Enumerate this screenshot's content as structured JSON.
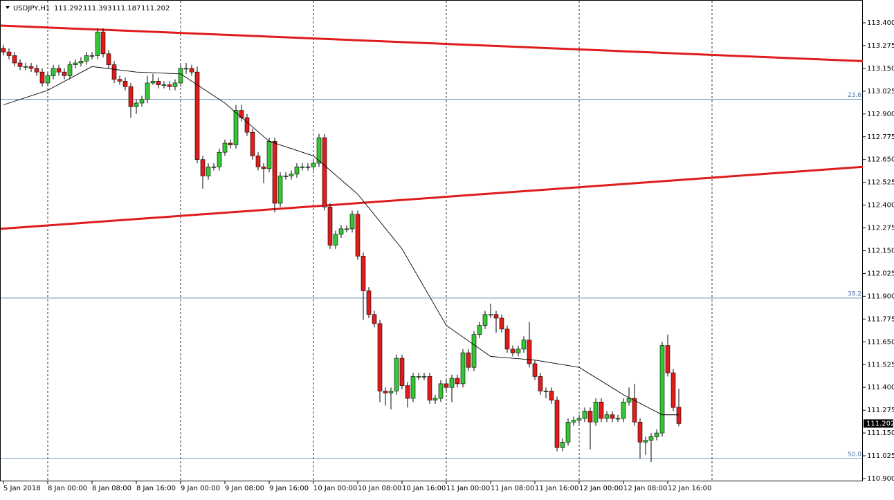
{
  "chart_data": {
    "type": "candlestick",
    "symbol": "USDJPY,H1",
    "header_ohlc": [
      111.292,
      111.393,
      111.187,
      111.202
    ],
    "bull_color": "#34c634",
    "bear_color": "#e01b1b",
    "ylim": [
      110.9,
      113.4
    ],
    "yticks": [
      {
        "value": 113.4,
        "label": "113.400"
      },
      {
        "value": 113.275,
        "label": "113.275"
      },
      {
        "value": 113.15,
        "label": "113.150"
      },
      {
        "value": 113.025,
        "label": "113.025"
      },
      {
        "value": 112.9,
        "label": "112.900"
      },
      {
        "value": 112.775,
        "label": "112.775"
      },
      {
        "value": 112.65,
        "label": "112.650"
      },
      {
        "value": 112.525,
        "label": "112.525"
      },
      {
        "value": 112.4,
        "label": "112.400"
      },
      {
        "value": 112.275,
        "label": "112.275"
      },
      {
        "value": 112.15,
        "label": "112.150"
      },
      {
        "value": 112.025,
        "label": "112.025"
      },
      {
        "value": 111.9,
        "label": "111.900"
      },
      {
        "value": 111.775,
        "label": "111.775"
      },
      {
        "value": 111.65,
        "label": "111.650"
      },
      {
        "value": 111.525,
        "label": "111.525"
      },
      {
        "value": 111.4,
        "label": "111.400"
      },
      {
        "value": 111.275,
        "label": "111.275"
      },
      {
        "value": 111.15,
        "label": "111.150"
      },
      {
        "value": 111.025,
        "label": "111.025"
      },
      {
        "value": 110.9,
        "label": "110.900"
      }
    ],
    "xticks": [
      {
        "value": 0,
        "label": "5 Jan 2018"
      },
      {
        "value": 8,
        "label": "8 Jan 00:00"
      },
      {
        "value": 16,
        "label": "8 Jan 08:00"
      },
      {
        "value": 24,
        "label": "8 Jan 16:00"
      },
      {
        "value": 32,
        "label": "9 Jan 00:00"
      },
      {
        "value": 40,
        "label": "9 Jan 08:00"
      },
      {
        "value": 48,
        "label": "9 Jan 16:00"
      },
      {
        "value": 56,
        "label": "10 Jan 00:00"
      },
      {
        "value": 64,
        "label": "10 Jan 08:00"
      },
      {
        "value": 72,
        "label": "10 Jan 16:00"
      },
      {
        "value": 80,
        "label": "11 Jan 00:00"
      },
      {
        "value": 88,
        "label": "11 Jan 08:00"
      },
      {
        "value": 96,
        "label": "11 Jan 16:00"
      },
      {
        "value": 104,
        "label": "12 Jan 00:00"
      },
      {
        "value": 112,
        "label": "12 Jan 08:00"
      },
      {
        "value": 120,
        "label": "12 Jan 16:00"
      }
    ],
    "day_separators": [
      8,
      32,
      56,
      80,
      104,
      128
    ],
    "current_price": {
      "value": 111.202,
      "label": "111.202"
    },
    "fib_levels": [
      {
        "label": "23.6",
        "price": 112.98
      },
      {
        "label": "38.2",
        "price": 111.89
      },
      {
        "label": "50.0",
        "price": 111.01
      }
    ],
    "fib_color": "#4a74a8",
    "trendlines": [
      {
        "start": 113.385,
        "end": 113.19
      },
      {
        "start": 112.27,
        "end": 112.61
      }
    ],
    "trendline_color": "#e01b1b",
    "ma": {
      "x": [
        0,
        8,
        16,
        24,
        32,
        40,
        48,
        56,
        64,
        72,
        80,
        88,
        96,
        104,
        112,
        119,
        122
      ],
      "values": [
        112.95,
        113.03,
        113.16,
        113.13,
        113.12,
        112.96,
        112.75,
        112.67,
        112.46,
        112.16,
        111.74,
        111.57,
        111.55,
        111.51,
        111.36,
        111.25,
        111.25
      ]
    },
    "candles": [
      [
        113.26,
        113.28,
        113.22,
        113.24
      ],
      [
        113.24,
        113.26,
        113.2,
        113.22
      ],
      [
        113.22,
        113.24,
        113.16,
        113.18
      ],
      [
        113.18,
        113.2,
        113.14,
        113.16
      ],
      [
        113.16,
        113.18,
        113.14,
        113.16
      ],
      [
        113.16,
        113.18,
        113.13,
        113.15
      ],
      [
        113.15,
        113.17,
        113.11,
        113.13
      ],
      [
        113.13,
        113.15,
        113.05,
        113.07
      ],
      [
        113.07,
        113.13,
        113.05,
        113.11
      ],
      [
        113.11,
        113.17,
        113.09,
        113.15
      ],
      [
        113.15,
        113.17,
        113.11,
        113.13
      ],
      [
        113.13,
        113.15,
        113.09,
        113.11
      ],
      [
        113.11,
        113.19,
        113.09,
        113.17
      ],
      [
        113.17,
        113.2,
        113.15,
        113.18
      ],
      [
        113.18,
        113.21,
        113.16,
        113.19
      ],
      [
        113.19,
        113.24,
        113.17,
        113.22
      ],
      [
        113.22,
        113.24,
        113.2,
        113.22
      ],
      [
        113.22,
        113.37,
        113.2,
        113.35
      ],
      [
        113.35,
        113.37,
        113.21,
        113.23
      ],
      [
        113.23,
        113.25,
        113.15,
        113.17
      ],
      [
        113.17,
        113.19,
        113.07,
        113.09
      ],
      [
        113.09,
        113.11,
        113.06,
        113.08
      ],
      [
        113.08,
        113.1,
        113.03,
        113.05
      ],
      [
        113.05,
        113.07,
        112.88,
        112.94
      ],
      [
        112.94,
        112.98,
        112.9,
        112.96
      ],
      [
        112.96,
        113,
        112.94,
        112.98
      ],
      [
        112.98,
        113.11,
        112.96,
        113.07
      ],
      [
        113.07,
        113.12,
        113.06,
        113.08
      ],
      [
        113.08,
        113.1,
        113.04,
        113.06
      ],
      [
        113.06,
        113.08,
        113.04,
        113.06
      ],
      [
        113.06,
        113.08,
        113.03,
        113.05
      ],
      [
        113.05,
        113.09,
        113.03,
        113.07
      ],
      [
        113.07,
        113.17,
        113.05,
        113.15
      ],
      [
        113.15,
        113.18,
        113.12,
        113.15
      ],
      [
        113.15,
        113.17,
        113.11,
        113.13
      ],
      [
        113.13,
        113.16,
        112.63,
        112.65
      ],
      [
        112.65,
        112.67,
        112.49,
        112.56
      ],
      [
        112.56,
        112.63,
        112.54,
        112.61
      ],
      [
        112.61,
        112.63,
        112.59,
        112.61
      ],
      [
        112.61,
        112.71,
        112.59,
        112.69
      ],
      [
        112.69,
        112.76,
        112.67,
        112.74
      ],
      [
        112.74,
        112.76,
        112.71,
        112.73
      ],
      [
        112.73,
        112.95,
        112.71,
        112.92
      ],
      [
        112.92,
        112.95,
        112.86,
        112.88
      ],
      [
        112.88,
        112.9,
        112.78,
        112.8
      ],
      [
        112.8,
        112.82,
        112.65,
        112.67
      ],
      [
        112.67,
        112.69,
        112.59,
        112.61
      ],
      [
        112.61,
        112.63,
        112.52,
        112.6
      ],
      [
        112.6,
        112.77,
        112.58,
        112.75
      ],
      [
        112.75,
        112.77,
        112.36,
        112.41
      ],
      [
        112.41,
        112.58,
        112.39,
        112.56
      ],
      [
        112.56,
        112.58,
        112.54,
        112.56
      ],
      [
        112.56,
        112.59,
        112.54,
        112.57
      ],
      [
        112.57,
        112.63,
        112.55,
        112.61
      ],
      [
        112.61,
        112.63,
        112.59,
        112.61
      ],
      [
        112.61,
        112.63,
        112.59,
        112.61
      ],
      [
        112.61,
        112.65,
        112.59,
        112.63
      ],
      [
        112.63,
        112.79,
        112.61,
        112.77
      ],
      [
        112.77,
        112.79,
        112.37,
        112.39
      ],
      [
        112.39,
        112.41,
        112.16,
        112.18
      ],
      [
        112.18,
        112.26,
        112.16,
        112.24
      ],
      [
        112.24,
        112.29,
        112.22,
        112.27
      ],
      [
        112.27,
        112.29,
        112.25,
        112.27
      ],
      [
        112.27,
        112.37,
        112.25,
        112.35
      ],
      [
        112.35,
        112.37,
        112.1,
        112.12
      ],
      [
        112.12,
        112.14,
        111.77,
        111.93
      ],
      [
        111.93,
        111.95,
        111.78,
        111.8
      ],
      [
        111.8,
        111.82,
        111.73,
        111.75
      ],
      [
        111.75,
        111.77,
        111.32,
        111.38
      ],
      [
        111.38,
        111.4,
        111.3,
        111.37
      ],
      [
        111.37,
        111.4,
        111.28,
        111.38
      ],
      [
        111.38,
        111.58,
        111.36,
        111.56
      ],
      [
        111.56,
        111.58,
        111.39,
        111.41
      ],
      [
        111.41,
        111.43,
        111.29,
        111.34
      ],
      [
        111.34,
        111.48,
        111.32,
        111.46
      ],
      [
        111.46,
        111.48,
        111.44,
        111.46
      ],
      [
        111.46,
        111.48,
        111.44,
        111.46
      ],
      [
        111.46,
        111.48,
        111.31,
        111.33
      ],
      [
        111.33,
        111.36,
        111.31,
        111.34
      ],
      [
        111.34,
        111.44,
        111.32,
        111.42
      ],
      [
        111.42,
        111.44,
        111.38,
        111.4
      ],
      [
        111.4,
        111.47,
        111.32,
        111.45
      ],
      [
        111.45,
        111.47,
        111.4,
        111.42
      ],
      [
        111.42,
        111.61,
        111.4,
        111.59
      ],
      [
        111.59,
        111.61,
        111.49,
        111.51
      ],
      [
        111.51,
        111.71,
        111.49,
        111.69
      ],
      [
        111.69,
        111.76,
        111.67,
        111.74
      ],
      [
        111.74,
        111.82,
        111.72,
        111.8
      ],
      [
        111.8,
        111.86,
        111.78,
        111.8
      ],
      [
        111.8,
        111.82,
        111.7,
        111.78
      ],
      [
        111.78,
        111.8,
        111.7,
        111.72
      ],
      [
        111.72,
        111.74,
        111.59,
        111.61
      ],
      [
        111.61,
        111.63,
        111.57,
        111.59
      ],
      [
        111.59,
        111.63,
        111.57,
        111.61
      ],
      [
        111.61,
        111.68,
        111.59,
        111.66
      ],
      [
        111.66,
        111.76,
        111.51,
        111.53
      ],
      [
        111.53,
        111.55,
        111.44,
        111.46
      ],
      [
        111.46,
        111.48,
        111.36,
        111.38
      ],
      [
        111.38,
        111.4,
        111.34,
        111.38
      ],
      [
        111.38,
        111.4,
        111.31,
        111.33
      ],
      [
        111.33,
        111.35,
        111.05,
        111.07
      ],
      [
        111.07,
        111.12,
        111.05,
        111.1
      ],
      [
        111.1,
        111.23,
        111.08,
        111.21
      ],
      [
        111.21,
        111.24,
        111.19,
        111.22
      ],
      [
        111.22,
        111.25,
        111.2,
        111.23
      ],
      [
        111.23,
        111.29,
        111.21,
        111.27
      ],
      [
        111.27,
        111.29,
        111.06,
        111.21
      ],
      [
        111.21,
        111.34,
        111.19,
        111.32
      ],
      [
        111.32,
        111.34,
        111.21,
        111.23
      ],
      [
        111.23,
        111.27,
        111.21,
        111.25
      ],
      [
        111.25,
        111.27,
        111.21,
        111.23
      ],
      [
        111.23,
        111.25,
        111.21,
        111.23
      ],
      [
        111.23,
        111.34,
        111.21,
        111.32
      ],
      [
        111.32,
        111.4,
        111.3,
        111.34
      ],
      [
        111.34,
        111.42,
        111.19,
        111.21
      ],
      [
        111.21,
        111.23,
        111.01,
        111.1
      ],
      [
        111.1,
        111.13,
        111.03,
        111.11
      ],
      [
        111.11,
        111.15,
        110.99,
        111.13
      ],
      [
        111.13,
        111.17,
        111.11,
        111.15
      ],
      [
        111.15,
        111.65,
        111.13,
        111.63
      ],
      [
        111.63,
        111.69,
        111.46,
        111.48
      ],
      [
        111.48,
        111.5,
        111.27,
        111.29
      ],
      [
        111.292,
        111.393,
        111.187,
        111.202
      ]
    ]
  }
}
